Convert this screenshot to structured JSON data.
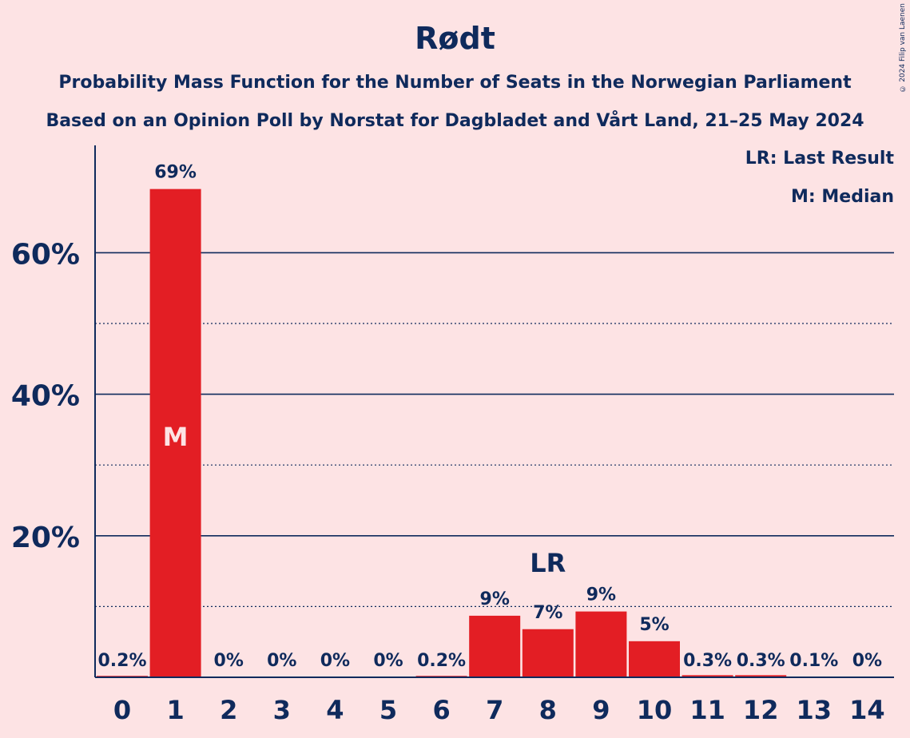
{
  "copyright": "© 2024 Filip van Laenen",
  "chart_data": {
    "type": "bar",
    "title": "Rødt",
    "subtitle_lines": [
      "Probability Mass Function for the Number of Seats in the Norwegian Parliament",
      "Based on an Opinion Poll by Norstat for Dagbladet and Vårt Land, 21–25 May 2024"
    ],
    "categories": [
      "0",
      "1",
      "2",
      "3",
      "4",
      "5",
      "6",
      "7",
      "8",
      "9",
      "10",
      "11",
      "12",
      "13",
      "14"
    ],
    "values": [
      0.2,
      69,
      0,
      0,
      0,
      0,
      0.2,
      8.7,
      6.8,
      9.3,
      5.1,
      0.3,
      0.3,
      0.1,
      0
    ],
    "value_labels": [
      "0.2%",
      "69%",
      "0%",
      "0%",
      "0%",
      "0%",
      "0.2%",
      "9%",
      "7%",
      "9%",
      "5%",
      "0.3%",
      "0.3%",
      "0.1%",
      "0%"
    ],
    "ylim": [
      0,
      75
    ],
    "yticks": [
      20,
      40,
      60
    ],
    "ytick_labels": [
      "20%",
      "40%",
      "60%"
    ],
    "minor_gridlines": [
      10,
      30,
      50
    ],
    "median_category": "1",
    "median_marker": "M",
    "last_result_category": "8",
    "last_result_marker": "LR",
    "legend": [
      "LR: Last Result",
      "M: Median"
    ],
    "legend_placement": "top-right",
    "colors": {
      "bar": "#e31e24",
      "text": "#0f2a5c",
      "background": "#fde3e4",
      "grid": "#0f2a5c",
      "median_text": "#fde3e4"
    }
  }
}
